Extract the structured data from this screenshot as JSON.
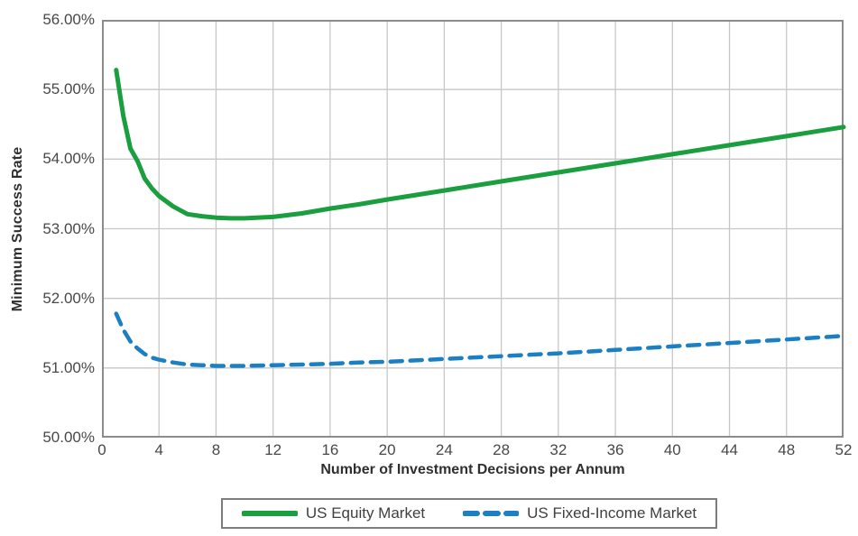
{
  "chart_data": {
    "type": "line",
    "title": "",
    "xlabel": "Number of Investment Decisions per Annum",
    "ylabel": "Minimum Success Rate",
    "xlim": [
      0,
      52
    ],
    "ylim": [
      50,
      56
    ],
    "grid": true,
    "legend_position": "bottom",
    "x_ticks": [
      0,
      4,
      8,
      12,
      16,
      20,
      24,
      28,
      32,
      36,
      40,
      44,
      48,
      52
    ],
    "y_ticks": [
      {
        "value": 56,
        "label": "56.00%"
      },
      {
        "value": 55,
        "label": "55.00%"
      },
      {
        "value": 54,
        "label": "54.00%"
      },
      {
        "value": 53,
        "label": "53.00%"
      },
      {
        "value": 52,
        "label": "52.00%"
      },
      {
        "value": 51,
        "label": "51.00%"
      },
      {
        "value": 50,
        "label": "50.00%"
      }
    ],
    "series": [
      {
        "name": "US Equity Market",
        "color": "#1a9e3e",
        "style": "solid",
        "line_width": 5,
        "x": [
          1,
          1.5,
          2,
          2.5,
          3,
          3.5,
          4,
          5,
          6,
          7,
          8,
          9,
          10,
          12,
          14,
          16,
          18,
          20,
          24,
          28,
          32,
          36,
          40,
          44,
          48,
          52
        ],
        "y": [
          55.28,
          54.62,
          54.15,
          53.97,
          53.72,
          53.58,
          53.47,
          53.32,
          53.21,
          53.18,
          53.16,
          53.15,
          53.15,
          53.17,
          53.22,
          53.29,
          53.35,
          53.42,
          53.55,
          53.68,
          53.81,
          53.94,
          54.07,
          54.2,
          54.33,
          54.46
        ]
      },
      {
        "name": "US Fixed-Income Market",
        "color": "#1b7fc4",
        "style": "dashed",
        "line_width": 4.5,
        "x": [
          1,
          1.5,
          2,
          2.5,
          3,
          3.5,
          4,
          5,
          6,
          7,
          8,
          9,
          10,
          12,
          14,
          16,
          18,
          20,
          24,
          28,
          32,
          36,
          40,
          44,
          48,
          52
        ],
        "y": [
          51.78,
          51.55,
          51.38,
          51.28,
          51.2,
          51.15,
          51.12,
          51.08,
          51.05,
          51.04,
          51.03,
          51.03,
          51.03,
          51.04,
          51.05,
          51.06,
          51.08,
          51.09,
          51.13,
          51.17,
          51.21,
          51.26,
          51.31,
          51.36,
          51.41,
          51.46
        ]
      }
    ]
  },
  "colors": {
    "background": "#ffffff",
    "gridline": "#c7c7c7",
    "axis_border": "#8c8c8e",
    "tick_text": "#48484a",
    "title_text": "#2f2f31",
    "legend_border": "#7d7d7f"
  }
}
